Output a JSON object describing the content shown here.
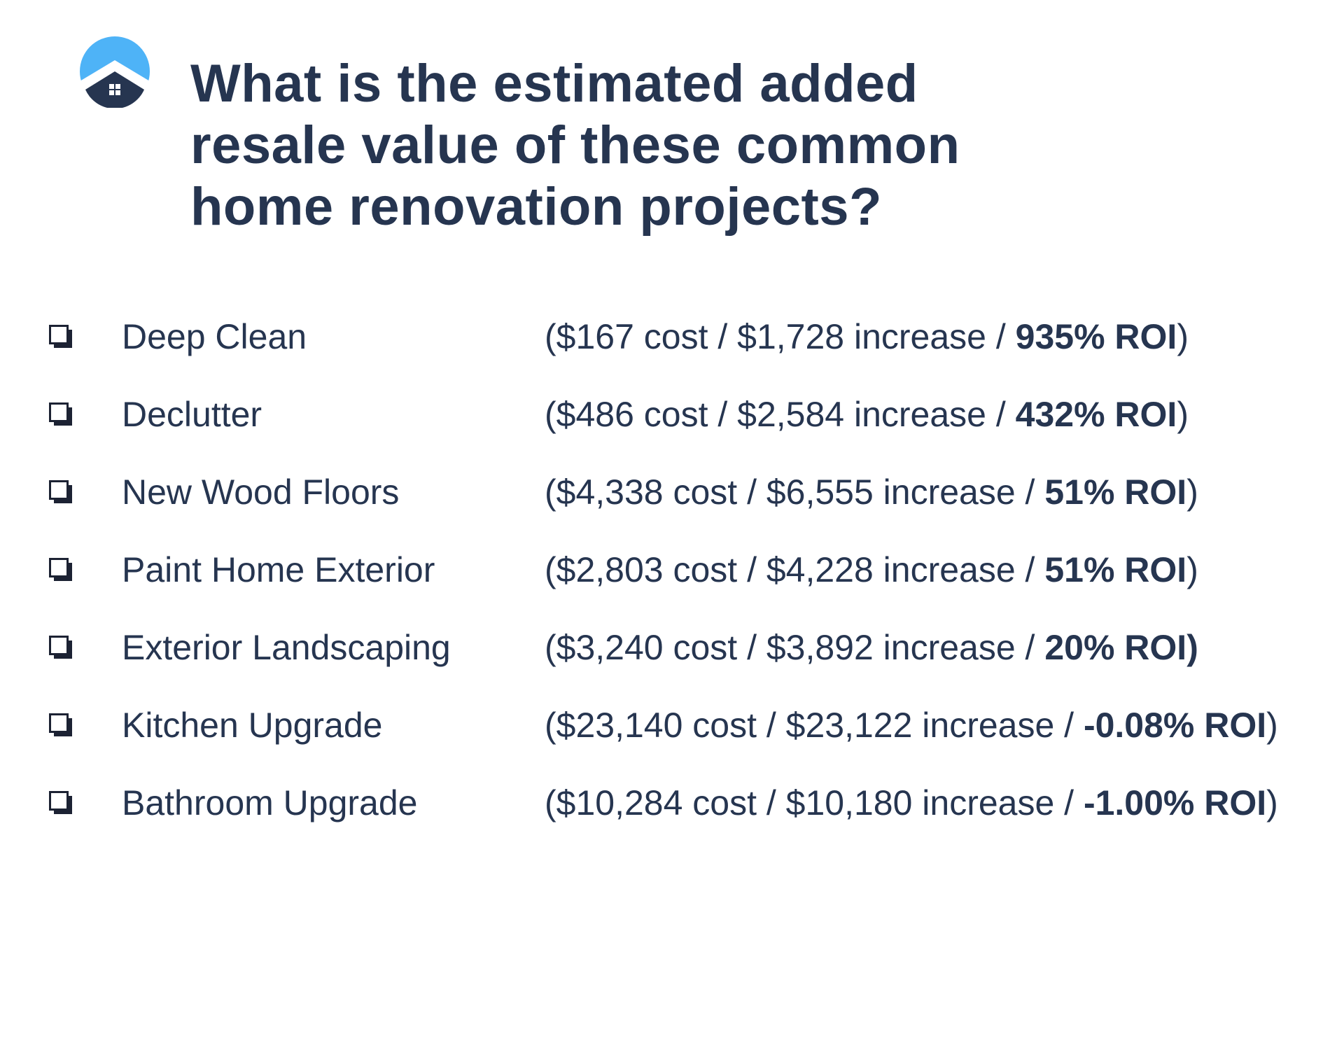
{
  "brand": {
    "logo_icon": "house-roof-icon",
    "accent_color": "#4eb3f7",
    "primary_color": "#263550"
  },
  "title": "What is the estimated added resale value of these common home renovation projects?",
  "projects": [
    {
      "name": "Deep Clean",
      "open": "(",
      "details": "$167 cost / $1,728 increase / ",
      "roi": "935% ROI",
      "close": ")"
    },
    {
      "name": "Declutter",
      "open": "(",
      "details": "$486 cost / $2,584 increase / ",
      "roi": "432% ROI",
      "close": ")"
    },
    {
      "name": "New Wood Floors",
      "open": "(",
      "details": "$4,338 cost / $6,555 increase / ",
      "roi": "51% ROI",
      "close": ")"
    },
    {
      "name": "Paint Home Exterior",
      "open": "(",
      "details": "$2,803 cost / $4,228 increase / ",
      "roi": "51% ROI",
      "close": ")"
    },
    {
      "name": "Exterior Landscaping",
      "open": "(",
      "details": "$3,240 cost / $3,892 increase / ",
      "roi": "20% ROI)",
      "close": ""
    },
    {
      "name": "Kitchen Upgrade",
      "open": "(",
      "details": "$23,140 cost / $23,122 increase / ",
      "roi": "-0.08% ROI",
      "close": ")"
    },
    {
      "name": "Bathroom Upgrade",
      "open": "(",
      "details": "$10,284 cost / $10,180 increase / ",
      "roi": "-1.00% ROI",
      "close": ")"
    }
  ]
}
